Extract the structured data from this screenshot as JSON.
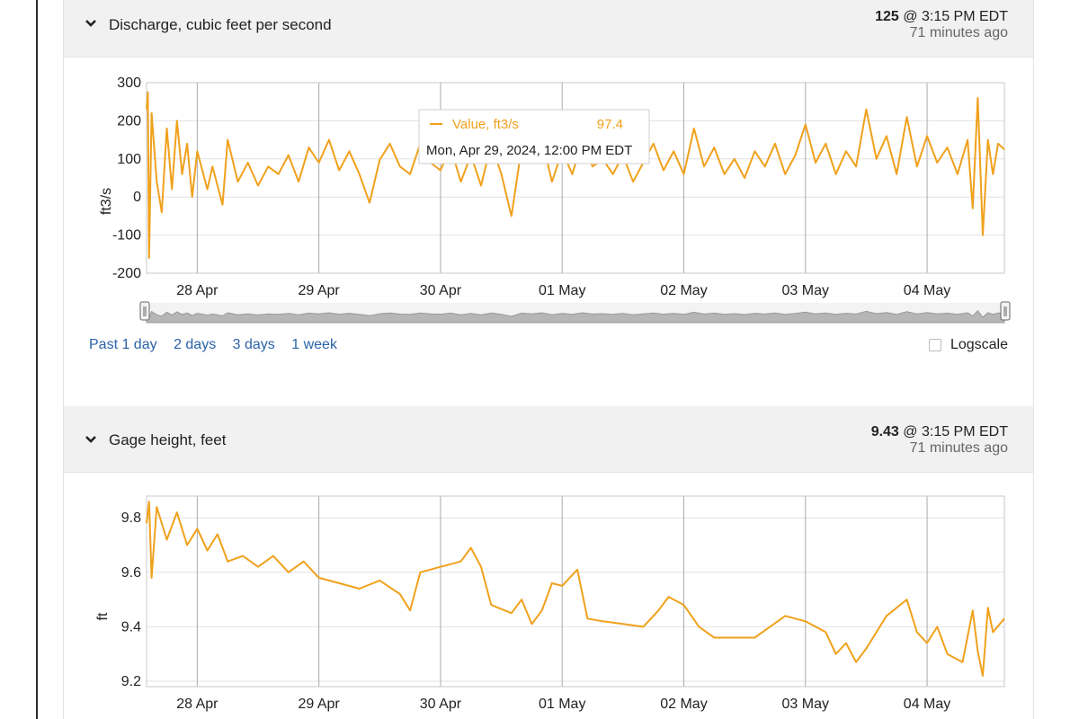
{
  "panels": [
    {
      "title": "Discharge, cubic feet per second",
      "reading": {
        "value": "125",
        "time": "@ 3:15 PM EDT",
        "ago": "71 minutes ago"
      },
      "range_links": [
        "Past 1 day",
        "2 days",
        "3 days",
        "1 week"
      ],
      "logscale_label": "Logscale",
      "tooltip": {
        "series": "Value, ft3/s",
        "value": "97.4",
        "date": "Mon, Apr 29, 2024, 12:00 PM EDT"
      }
    },
    {
      "title": "Gage height, feet",
      "reading": {
        "value": "9.43",
        "time": "@ 3:15 PM EDT",
        "ago": "71 minutes ago"
      }
    }
  ],
  "chart_data": [
    {
      "type": "line",
      "ylabel": "ft3/s",
      "ylim": [
        -200,
        300
      ],
      "yticks": [
        300,
        200,
        100,
        0,
        -100,
        -200
      ],
      "xlim": [
        "2024-04-27T14:00",
        "2024-05-04T15:15"
      ],
      "xticks": [
        {
          "x": "2024-04-28",
          "label": "28 Apr"
        },
        {
          "x": "2024-04-29",
          "label": "29 Apr"
        },
        {
          "x": "2024-04-30",
          "label": "30 Apr"
        },
        {
          "x": "2024-05-01",
          "label": "01 May"
        },
        {
          "x": "2024-05-02",
          "label": "02 May"
        },
        {
          "x": "2024-05-03",
          "label": "03 May"
        },
        {
          "x": "2024-05-04",
          "label": "04 May"
        }
      ],
      "grid": true,
      "color": "#f0a11c",
      "series": [
        {
          "values": [
            {
              "x": "2024-04-27T14:00",
              "y": 230
            },
            {
              "x": "2024-04-27T14:15",
              "y": 275
            },
            {
              "x": "2024-04-27T14:30",
              "y": -160
            },
            {
              "x": "2024-04-27T15:00",
              "y": 220
            },
            {
              "x": "2024-04-27T16:00",
              "y": 40
            },
            {
              "x": "2024-04-27T17:00",
              "y": -40
            },
            {
              "x": "2024-04-27T18:00",
              "y": 180
            },
            {
              "x": "2024-04-27T19:00",
              "y": 20
            },
            {
              "x": "2024-04-27T20:00",
              "y": 200
            },
            {
              "x": "2024-04-27T21:00",
              "y": 60
            },
            {
              "x": "2024-04-27T22:00",
              "y": 140
            },
            {
              "x": "2024-04-27T23:00",
              "y": 0
            },
            {
              "x": "2024-04-28T00:00",
              "y": 120
            },
            {
              "x": "2024-04-28T02:00",
              "y": 20
            },
            {
              "x": "2024-04-28T03:00",
              "y": 80
            },
            {
              "x": "2024-04-28T05:00",
              "y": -20
            },
            {
              "x": "2024-04-28T06:00",
              "y": 150
            },
            {
              "x": "2024-04-28T08:00",
              "y": 40
            },
            {
              "x": "2024-04-28T10:00",
              "y": 90
            },
            {
              "x": "2024-04-28T12:00",
              "y": 30
            },
            {
              "x": "2024-04-28T14:00",
              "y": 80
            },
            {
              "x": "2024-04-28T16:00",
              "y": 60
            },
            {
              "x": "2024-04-28T18:00",
              "y": 110
            },
            {
              "x": "2024-04-28T20:00",
              "y": 40
            },
            {
              "x": "2024-04-28T22:00",
              "y": 130
            },
            {
              "x": "2024-04-29T00:00",
              "y": 90
            },
            {
              "x": "2024-04-29T02:00",
              "y": 150
            },
            {
              "x": "2024-04-29T04:00",
              "y": 70
            },
            {
              "x": "2024-04-29T06:00",
              "y": 120
            },
            {
              "x": "2024-04-29T08:00",
              "y": 60
            },
            {
              "x": "2024-04-29T10:00",
              "y": -15
            },
            {
              "x": "2024-04-29T12:00",
              "y": 97.4
            },
            {
              "x": "2024-04-29T14:00",
              "y": 140
            },
            {
              "x": "2024-04-29T16:00",
              "y": 80
            },
            {
              "x": "2024-04-29T18:00",
              "y": 60
            },
            {
              "x": "2024-04-29T20:00",
              "y": 140
            },
            {
              "x": "2024-04-29T22:00",
              "y": 90
            },
            {
              "x": "2024-04-30T00:00",
              "y": 70
            },
            {
              "x": "2024-04-30T02:00",
              "y": 130
            },
            {
              "x": "2024-04-30T04:00",
              "y": 40
            },
            {
              "x": "2024-04-30T06:00",
              "y": 110
            },
            {
              "x": "2024-04-30T08:00",
              "y": 30
            },
            {
              "x": "2024-04-30T10:00",
              "y": 140
            },
            {
              "x": "2024-04-30T12:00",
              "y": 60
            },
            {
              "x": "2024-04-30T14:00",
              "y": -50
            },
            {
              "x": "2024-04-30T16:00",
              "y": 130
            },
            {
              "x": "2024-04-30T18:00",
              "y": 90
            },
            {
              "x": "2024-04-30T20:00",
              "y": 150
            },
            {
              "x": "2024-04-30T22:00",
              "y": 40
            },
            {
              "x": "2024-05-01T00:00",
              "y": 120
            },
            {
              "x": "2024-05-01T02:00",
              "y": 60
            },
            {
              "x": "2024-05-01T04:00",
              "y": 150
            },
            {
              "x": "2024-05-01T06:00",
              "y": 80
            },
            {
              "x": "2024-05-01T08:00",
              "y": 100
            },
            {
              "x": "2024-05-01T10:00",
              "y": 60
            },
            {
              "x": "2024-05-01T12:00",
              "y": 110
            },
            {
              "x": "2024-05-01T14:00",
              "y": 40
            },
            {
              "x": "2024-05-01T16:00",
              "y": 90
            },
            {
              "x": "2024-05-01T18:00",
              "y": 140
            },
            {
              "x": "2024-05-01T20:00",
              "y": 70
            },
            {
              "x": "2024-05-01T22:00",
              "y": 120
            },
            {
              "x": "2024-05-02T00:00",
              "y": 60
            },
            {
              "x": "2024-05-02T02:00",
              "y": 180
            },
            {
              "x": "2024-05-02T04:00",
              "y": 80
            },
            {
              "x": "2024-05-02T06:00",
              "y": 130
            },
            {
              "x": "2024-05-02T08:00",
              "y": 60
            },
            {
              "x": "2024-05-02T10:00",
              "y": 100
            },
            {
              "x": "2024-05-02T12:00",
              "y": 50
            },
            {
              "x": "2024-05-02T14:00",
              "y": 120
            },
            {
              "x": "2024-05-02T16:00",
              "y": 80
            },
            {
              "x": "2024-05-02T18:00",
              "y": 140
            },
            {
              "x": "2024-05-02T20:00",
              "y": 60
            },
            {
              "x": "2024-05-02T22:00",
              "y": 110
            },
            {
              "x": "2024-05-03T00:00",
              "y": 190
            },
            {
              "x": "2024-05-03T02:00",
              "y": 90
            },
            {
              "x": "2024-05-03T04:00",
              "y": 140
            },
            {
              "x": "2024-05-03T06:00",
              "y": 60
            },
            {
              "x": "2024-05-03T08:00",
              "y": 120
            },
            {
              "x": "2024-05-03T10:00",
              "y": 80
            },
            {
              "x": "2024-05-03T12:00",
              "y": 230
            },
            {
              "x": "2024-05-03T14:00",
              "y": 100
            },
            {
              "x": "2024-05-03T16:00",
              "y": 160
            },
            {
              "x": "2024-05-03T18:00",
              "y": 60
            },
            {
              "x": "2024-05-03T20:00",
              "y": 210
            },
            {
              "x": "2024-05-03T22:00",
              "y": 80
            },
            {
              "x": "2024-05-04T00:00",
              "y": 160
            },
            {
              "x": "2024-05-04T02:00",
              "y": 90
            },
            {
              "x": "2024-05-04T04:00",
              "y": 130
            },
            {
              "x": "2024-05-04T06:00",
              "y": 60
            },
            {
              "x": "2024-05-04T08:00",
              "y": 150
            },
            {
              "x": "2024-05-04T09:00",
              "y": -30
            },
            {
              "x": "2024-05-04T10:00",
              "y": 260
            },
            {
              "x": "2024-05-04T11:00",
              "y": -100
            },
            {
              "x": "2024-05-04T12:00",
              "y": 150
            },
            {
              "x": "2024-05-04T13:00",
              "y": 60
            },
            {
              "x": "2024-05-04T14:00",
              "y": 140
            },
            {
              "x": "2024-05-04T15:15",
              "y": 125
            }
          ]
        }
      ]
    },
    {
      "type": "line",
      "ylabel": "ft",
      "ylim": [
        9.18,
        9.88
      ],
      "yticks": [
        9.8,
        9.6,
        9.4,
        9.2
      ],
      "xlim": [
        "2024-04-27T14:00",
        "2024-05-04T15:15"
      ],
      "xticks": [
        {
          "x": "2024-04-28",
          "label": "28 Apr"
        },
        {
          "x": "2024-04-29",
          "label": "29 Apr"
        },
        {
          "x": "2024-04-30",
          "label": "30 Apr"
        },
        {
          "x": "2024-05-01",
          "label": "01 May"
        },
        {
          "x": "2024-05-02",
          "label": "02 May"
        },
        {
          "x": "2024-05-03",
          "label": "03 May"
        },
        {
          "x": "2024-05-04",
          "label": "04 May"
        }
      ],
      "grid": true,
      "color": "#f0a11c",
      "series": [
        {
          "values": [
            {
              "x": "2024-04-27T14:00",
              "y": 9.78
            },
            {
              "x": "2024-04-27T14:30",
              "y": 9.86
            },
            {
              "x": "2024-04-27T15:00",
              "y": 9.58
            },
            {
              "x": "2024-04-27T16:00",
              "y": 9.84
            },
            {
              "x": "2024-04-27T18:00",
              "y": 9.72
            },
            {
              "x": "2024-04-27T20:00",
              "y": 9.82
            },
            {
              "x": "2024-04-27T22:00",
              "y": 9.7
            },
            {
              "x": "2024-04-28T00:00",
              "y": 9.76
            },
            {
              "x": "2024-04-28T02:00",
              "y": 9.68
            },
            {
              "x": "2024-04-28T04:00",
              "y": 9.74
            },
            {
              "x": "2024-04-28T06:00",
              "y": 9.64
            },
            {
              "x": "2024-04-28T09:00",
              "y": 9.66
            },
            {
              "x": "2024-04-28T12:00",
              "y": 9.62
            },
            {
              "x": "2024-04-28T15:00",
              "y": 9.66
            },
            {
              "x": "2024-04-28T18:00",
              "y": 9.6
            },
            {
              "x": "2024-04-28T21:00",
              "y": 9.64
            },
            {
              "x": "2024-04-29T00:00",
              "y": 9.58
            },
            {
              "x": "2024-04-29T04:00",
              "y": 9.56
            },
            {
              "x": "2024-04-29T08:00",
              "y": 9.54
            },
            {
              "x": "2024-04-29T12:00",
              "y": 9.57
            },
            {
              "x": "2024-04-29T16:00",
              "y": 9.52
            },
            {
              "x": "2024-04-29T18:00",
              "y": 9.46
            },
            {
              "x": "2024-04-29T20:00",
              "y": 9.6
            },
            {
              "x": "2024-04-30T00:00",
              "y": 9.62
            },
            {
              "x": "2024-04-30T04:00",
              "y": 9.64
            },
            {
              "x": "2024-04-30T06:00",
              "y": 9.69
            },
            {
              "x": "2024-04-30T08:00",
              "y": 9.62
            },
            {
              "x": "2024-04-30T10:00",
              "y": 9.48
            },
            {
              "x": "2024-04-30T14:00",
              "y": 9.45
            },
            {
              "x": "2024-04-30T16:00",
              "y": 9.5
            },
            {
              "x": "2024-04-30T18:00",
              "y": 9.41
            },
            {
              "x": "2024-04-30T20:00",
              "y": 9.46
            },
            {
              "x": "2024-04-30T22:00",
              "y": 9.56
            },
            {
              "x": "2024-05-01T00:00",
              "y": 9.55
            },
            {
              "x": "2024-05-01T03:00",
              "y": 9.61
            },
            {
              "x": "2024-05-01T05:00",
              "y": 9.43
            },
            {
              "x": "2024-05-01T08:00",
              "y": 9.42
            },
            {
              "x": "2024-05-01T12:00",
              "y": 9.41
            },
            {
              "x": "2024-05-01T16:00",
              "y": 9.4
            },
            {
              "x": "2024-05-01T19:00",
              "y": 9.46
            },
            {
              "x": "2024-05-01T21:00",
              "y": 9.51
            },
            {
              "x": "2024-05-02T00:00",
              "y": 9.48
            },
            {
              "x": "2024-05-02T03:00",
              "y": 9.4
            },
            {
              "x": "2024-05-02T06:00",
              "y": 9.36
            },
            {
              "x": "2024-05-02T10:00",
              "y": 9.36
            },
            {
              "x": "2024-05-02T14:00",
              "y": 9.36
            },
            {
              "x": "2024-05-02T17:00",
              "y": 9.4
            },
            {
              "x": "2024-05-02T20:00",
              "y": 9.44
            },
            {
              "x": "2024-05-03T00:00",
              "y": 9.42
            },
            {
              "x": "2024-05-03T04:00",
              "y": 9.38
            },
            {
              "x": "2024-05-03T06:00",
              "y": 9.3
            },
            {
              "x": "2024-05-03T08:00",
              "y": 9.34
            },
            {
              "x": "2024-05-03T10:00",
              "y": 9.27
            },
            {
              "x": "2024-05-03T12:00",
              "y": 9.32
            },
            {
              "x": "2024-05-03T16:00",
              "y": 9.44
            },
            {
              "x": "2024-05-03T20:00",
              "y": 9.5
            },
            {
              "x": "2024-05-03T22:00",
              "y": 9.38
            },
            {
              "x": "2024-05-04T00:00",
              "y": 9.34
            },
            {
              "x": "2024-05-04T02:00",
              "y": 9.4
            },
            {
              "x": "2024-05-04T04:00",
              "y": 9.3
            },
            {
              "x": "2024-05-04T07:00",
              "y": 9.27
            },
            {
              "x": "2024-05-04T09:00",
              "y": 9.46
            },
            {
              "x": "2024-05-04T10:00",
              "y": 9.31
            },
            {
              "x": "2024-05-04T11:00",
              "y": 9.22
            },
            {
              "x": "2024-05-04T12:00",
              "y": 9.47
            },
            {
              "x": "2024-05-04T13:00",
              "y": 9.38
            },
            {
              "x": "2024-05-04T15:15",
              "y": 9.43
            }
          ]
        }
      ]
    }
  ]
}
